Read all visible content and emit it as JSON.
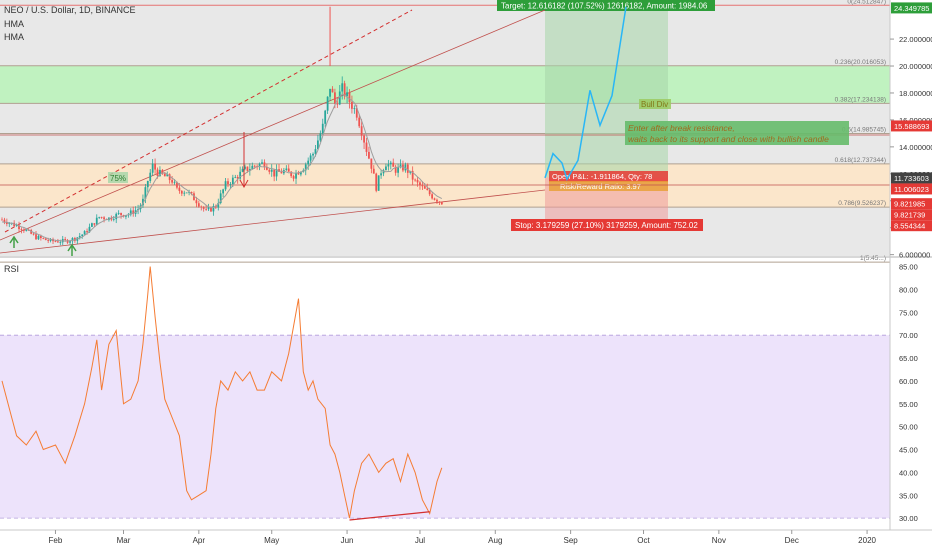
{
  "header": {
    "symbol_line": "NEO / U.S. Dollar, 1D, BINANCE",
    "indicators": [
      "HMA",
      "HMA"
    ],
    "rsi_label": "RSI"
  },
  "colors": {
    "candle_up": "#26a69a",
    "candle_down": "#ef5350",
    "hma": "#9e9e9e",
    "rsi_line": "#f57c33",
    "rsi_band": "#ede3fb",
    "fib_band_green": "#b9f3b9",
    "fib_band_orange": "#fde6c8",
    "target_zone": "#a5d6a7",
    "stop_zone": "#ef9a9a",
    "label_green": "#2e9e3a",
    "label_red": "#e53935",
    "price_tag_dark": "#424242",
    "projection": "#29b6f6"
  },
  "chart_data": [
    {
      "type": "candlestick",
      "title": "NEO / U.S. Dollar, 1D, BINANCE",
      "x_ticks": [
        "Feb",
        "Mar",
        "Apr",
        "May",
        "Jun",
        "Jul",
        "Aug",
        "Sep",
        "Oct",
        "Nov",
        "Dec",
        "2020"
      ],
      "y_ticks": [
        6,
        8,
        10,
        12,
        14,
        16,
        18,
        20,
        22
      ],
      "y_tick_labels": [
        "6.000000",
        "8.000000",
        "10.000000",
        "12.000000",
        "14.000000",
        "16.000000",
        "18.000000",
        "20.000000",
        "22.000000"
      ],
      "ylim": [
        5.9,
        24.9
      ],
      "price_path": [
        [
          0,
          8.6
        ],
        [
          8,
          8.0
        ],
        [
          14,
          7.3
        ],
        [
          20,
          7.0
        ],
        [
          26,
          7.0
        ],
        [
          30,
          7.2
        ],
        [
          34,
          7.6
        ],
        [
          38,
          8.4
        ],
        [
          40,
          8.8
        ],
        [
          44,
          8.7
        ],
        [
          48,
          9.0
        ],
        [
          52,
          9.0
        ],
        [
          56,
          9.4
        ],
        [
          58,
          10.0
        ],
        [
          60,
          11.5
        ],
        [
          62,
          12.6
        ],
        [
          64,
          12.1
        ],
        [
          66,
          11.9
        ],
        [
          70,
          11.5
        ],
        [
          72,
          10.8
        ],
        [
          76,
          10.7
        ],
        [
          80,
          10.0
        ],
        [
          84,
          9.2
        ],
        [
          88,
          9.6
        ],
        [
          90,
          10.4
        ],
        [
          92,
          11.2
        ],
        [
          96,
          11.7
        ],
        [
          100,
          12.3
        ],
        [
          104,
          12.6
        ],
        [
          108,
          12.8
        ],
        [
          112,
          12.0
        ],
        [
          116,
          12.2
        ],
        [
          120,
          11.9
        ],
        [
          124,
          12.5
        ],
        [
          128,
          13.5
        ],
        [
          132,
          15.5
        ],
        [
          135,
          18.5
        ],
        [
          137,
          17.2
        ],
        [
          140,
          18.3
        ],
        [
          143,
          17.4
        ],
        [
          146,
          16.5
        ],
        [
          148,
          15.2
        ],
        [
          150,
          13.8
        ],
        [
          152,
          12.6
        ],
        [
          154,
          11.0
        ],
        [
          156,
          12.2
        ],
        [
          158,
          12.8
        ],
        [
          162,
          12.3
        ],
        [
          166,
          12.5
        ],
        [
          170,
          11.4
        ],
        [
          174,
          10.8
        ],
        [
          178,
          10.2
        ],
        [
          181,
          9.9
        ]
      ],
      "annotations": {
        "fib_levels": [
          {
            "ratio": "0(24.512847)",
            "value": 24.51
          },
          {
            "ratio": "0.236(20.016053)",
            "value": 20.02
          },
          {
            "ratio": "0.382(17.234138)",
            "value": 17.23
          },
          {
            "ratio": "0.5(14.985745)",
            "value": 14.99
          },
          {
            "ratio": "0.618(12.737344)",
            "value": 12.74
          },
          {
            "ratio": "0.786(9.526237)",
            "value": 9.53
          },
          {
            "ratio": "1(5.45...)",
            "value": 5.45
          }
        ],
        "target_label": "Target: 12.616182 (107.52%) 12616182, Amount: 1984.06",
        "stop_label": "Stop: 3.179259 (27.10%) 3179259, Amount: 752.02",
        "position_label": "Open P&L: -1.911864, Qty: 78",
        "risk_label": "Risk/Reward Ratio: 3.97",
        "bull_div": "Bull Div",
        "note_line1": "Enter after break resistance,",
        "note_line2": "waits back to its support and close with bullish candle",
        "pct_tag": "75%"
      },
      "price_tags": [
        {
          "label": "24.349785",
          "value": 24.35,
          "color": "#2e9e3a"
        },
        {
          "label": "15.588693",
          "value": 15.59,
          "color": "#e53935"
        },
        {
          "label": "11.733603",
          "value": 11.73,
          "color": "#424242"
        },
        {
          "label": "11.006023",
          "value": 11.01,
          "color": "#e53935"
        },
        {
          "label": "9.821985",
          "value": 9.82,
          "color": "#e53935"
        },
        {
          "label": "9.821739",
          "value": 9.82,
          "color": "#e53935"
        },
        {
          "label": "8.554344",
          "value": 8.55,
          "color": "#e53935"
        }
      ]
    },
    {
      "type": "line",
      "title": "RSI",
      "y_ticks": [
        30,
        35,
        40,
        45,
        50,
        55,
        60,
        65,
        70,
        75,
        80,
        85
      ],
      "y_tick_labels": [
        "30.00",
        "35.00",
        "40.00",
        "45.00",
        "50.00",
        "55.00",
        "60.00",
        "65.00",
        "70.00",
        "75.00",
        "80.00",
        "85.00"
      ],
      "ylim": [
        28.5,
        86.0
      ],
      "band": [
        30,
        70
      ],
      "series": [
        {
          "values": [
            [
              0,
              60
            ],
            [
              4,
              52
            ],
            [
              6,
              48
            ],
            [
              10,
              46
            ],
            [
              14,
              49
            ],
            [
              17,
              45
            ],
            [
              22,
              46
            ],
            [
              26,
              42
            ],
            [
              30,
              48
            ],
            [
              34,
              55
            ],
            [
              37,
              63
            ],
            [
              39,
              69
            ],
            [
              41,
              58
            ],
            [
              44,
              68
            ],
            [
              47,
              71
            ],
            [
              50,
              55
            ],
            [
              53,
              56
            ],
            [
              56,
              60
            ],
            [
              58,
              68
            ],
            [
              60,
              79
            ],
            [
              61,
              85
            ],
            [
              63,
              74
            ],
            [
              65,
              64
            ],
            [
              67,
              56
            ],
            [
              70,
              52
            ],
            [
              73,
              48
            ],
            [
              76,
              36
            ],
            [
              78,
              34
            ],
            [
              81,
              35
            ],
            [
              84,
              36
            ],
            [
              86,
              44
            ],
            [
              88,
              54
            ],
            [
              90,
              60
            ],
            [
              93,
              58
            ],
            [
              96,
              62
            ],
            [
              99,
              60
            ],
            [
              102,
              62
            ],
            [
              105,
              58
            ],
            [
              108,
              58
            ],
            [
              111,
              62
            ],
            [
              115,
              60
            ],
            [
              118,
              66
            ],
            [
              120,
              72
            ],
            [
              122,
              78
            ],
            [
              124,
              62
            ],
            [
              126,
              58
            ],
            [
              128,
              60
            ],
            [
              130,
              56
            ],
            [
              133,
              54
            ],
            [
              135,
              46
            ],
            [
              137,
              44
            ],
            [
              139,
              40
            ],
            [
              141,
              35
            ],
            [
              143,
              30
            ],
            [
              145,
              36
            ],
            [
              148,
              42
            ],
            [
              151,
              44
            ],
            [
              155,
              40
            ],
            [
              158,
              42
            ],
            [
              161,
              43
            ],
            [
              164,
              38
            ],
            [
              167,
              44
            ],
            [
              170,
              40
            ],
            [
              173,
              34
            ],
            [
              176,
              31
            ],
            [
              179,
              38
            ],
            [
              181,
              41
            ]
          ]
        }
      ]
    }
  ]
}
